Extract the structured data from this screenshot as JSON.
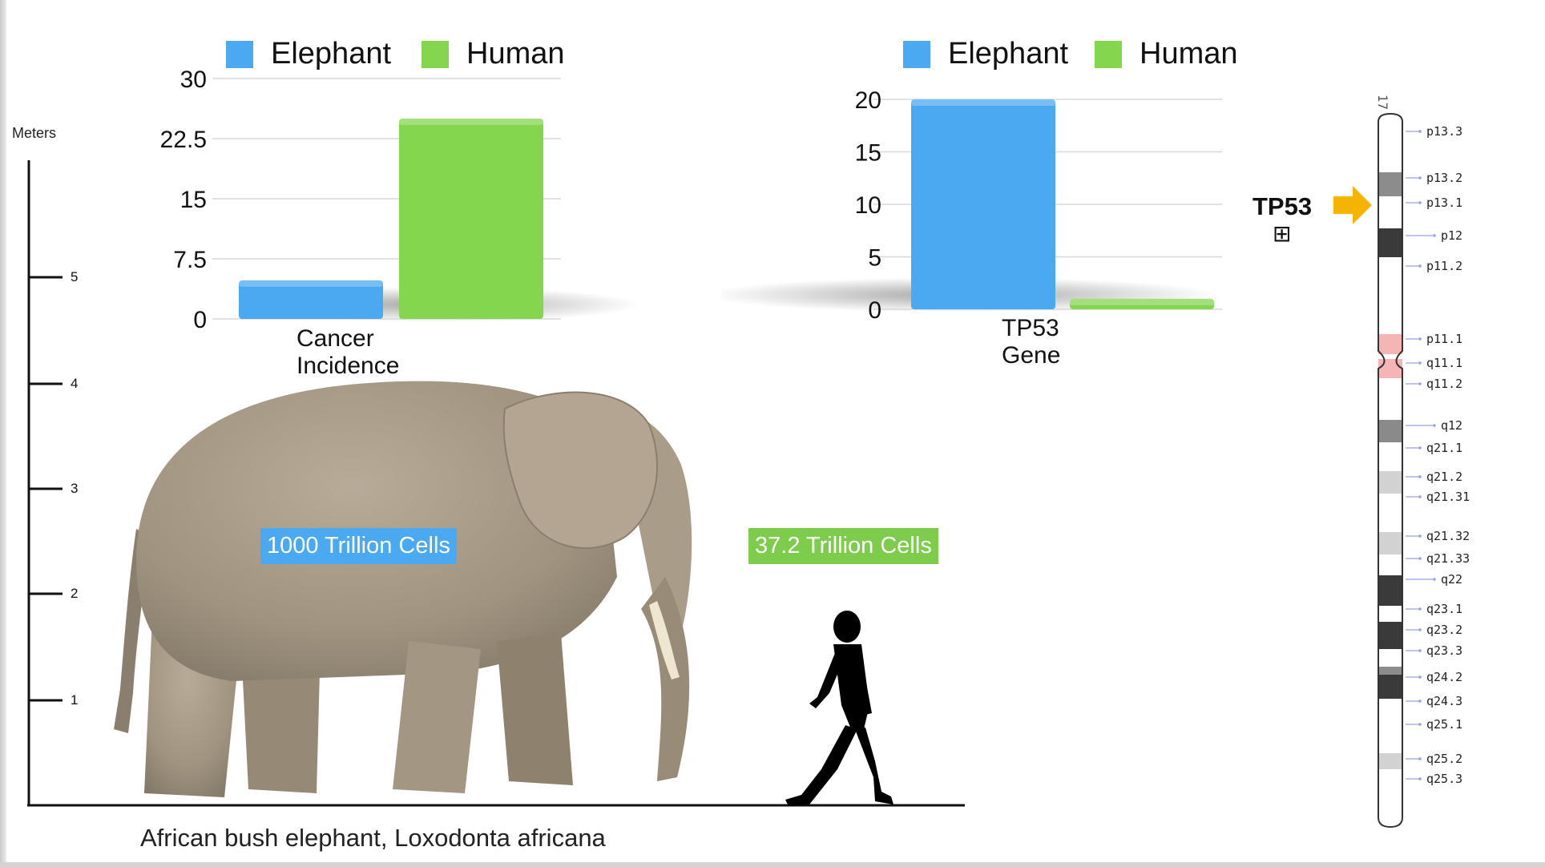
{
  "chart_data": [
    {
      "type": "bar",
      "categories": [
        "Cancer Incidence"
      ],
      "series": [
        {
          "name": "Elephant",
          "values": [
            4.81
          ]
        },
        {
          "name": "Human",
          "values": [
            25.0
          ]
        }
      ],
      "xlabel": "Cancer Incidence",
      "ylim": [
        0,
        30
      ],
      "yticks": [
        "0",
        "7.5",
        "15",
        "22.5",
        "30"
      ],
      "legend": "top",
      "grid": true
    },
    {
      "type": "bar",
      "categories": [
        "TP53 Gene"
      ],
      "series": [
        {
          "name": "Elephant",
          "values": [
            20
          ]
        },
        {
          "name": "Human",
          "values": [
            1
          ]
        }
      ],
      "xlabel": "TP53 Gene",
      "ylim": [
        0,
        20
      ],
      "yticks": [
        "0",
        "5",
        "10",
        "15",
        "20"
      ],
      "legend": "top",
      "grid": true
    }
  ],
  "colors": {
    "elephant": "#4aa9f0",
    "human": "#84d64f",
    "arrow": "#f5b400",
    "centromere": "#f6b5b5"
  },
  "scale": {
    "unit_label": "Meters",
    "ticks": [
      "1",
      "2",
      "3",
      "4",
      "5"
    ]
  },
  "caption": "African bush elephant, Loxodonta africana",
  "cell_labels": {
    "elephant": "1000 Trillion Cells",
    "human": "37.2 Trillion Cells"
  },
  "chromosome": {
    "name": "17",
    "gene": "TP53",
    "expand_symbol": "⊞",
    "bands": [
      "p13.3",
      "p13.2",
      "p13.1",
      "p12",
      "p11.2",
      "p11.1",
      "q11.1",
      "q11.2",
      "q12",
      "q21.1",
      "q21.2",
      "q21.31",
      "q21.32",
      "q21.33",
      "q22",
      "q23.1",
      "q23.2",
      "q23.3",
      "q24.2",
      "q24.3",
      "q25.1",
      "q25.2",
      "q25.3"
    ]
  }
}
